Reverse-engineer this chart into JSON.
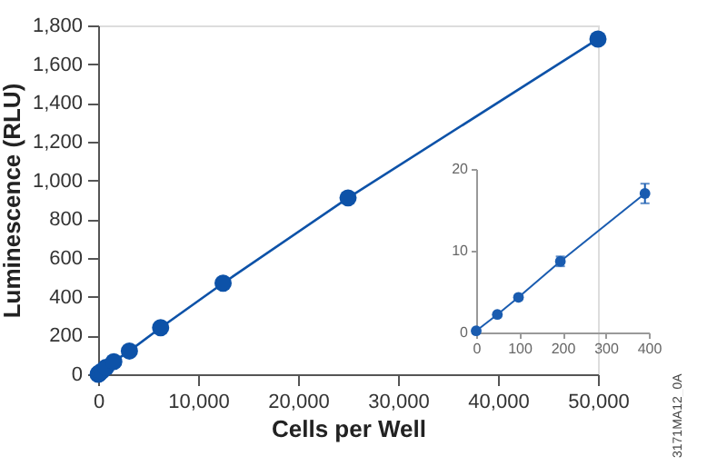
{
  "chart_data": [
    {
      "type": "line",
      "xlabel": "Cells per Well",
      "ylabel": "Luminescence (RLU)",
      "marker": "circle",
      "line_style": "solid",
      "x": [
        0,
        49,
        98,
        195,
        391,
        781,
        1563,
        3125,
        6250,
        12500,
        25000,
        50000
      ],
      "series": [
        {
          "color": "#0d52a8",
          "values": [
            0,
            2,
            4,
            9,
            17,
            35,
            65,
            120,
            240,
            470,
            910,
            1730
          ]
        }
      ],
      "xlim": [
        0,
        50000
      ],
      "ylim": [
        0,
        1800
      ],
      "xticks": [
        0,
        {
          "value": 10000,
          "label": "10,000"
        },
        {
          "value": 20000,
          "label": "20,000"
        },
        {
          "value": 30000,
          "label": "30,000"
        },
        {
          "value": 40000,
          "label": "40,000"
        },
        {
          "value": 50000,
          "label": "50,000"
        }
      ],
      "yticks": [
        0,
        200,
        400,
        600,
        800,
        {
          "value": 1000,
          "label": "1,000"
        },
        {
          "value": 1200,
          "label": "1,200"
        },
        {
          "value": 1400,
          "label": "1,400"
        },
        {
          "value": 1600,
          "label": "1,600"
        },
        {
          "value": 1800,
          "label": "1,800"
        }
      ],
      "annotations": [
        "3171MA12_0A"
      ]
    },
    {
      "type": "line",
      "marker": "circle",
      "line_style": "solid",
      "x": [
        0,
        49,
        98,
        195,
        391
      ],
      "series": [
        {
          "color": "#1a5cb0",
          "values": [
            0.2,
            2.2,
            4.3,
            8.7,
            17
          ],
          "errors": [
            null,
            null,
            null,
            0.6,
            1.2
          ]
        }
      ],
      "xlim": [
        0,
        400
      ],
      "ylim": [
        0,
        20
      ],
      "xticks": [
        0,
        100,
        200,
        300,
        400
      ],
      "yticks": [
        0,
        10,
        20
      ]
    }
  ]
}
